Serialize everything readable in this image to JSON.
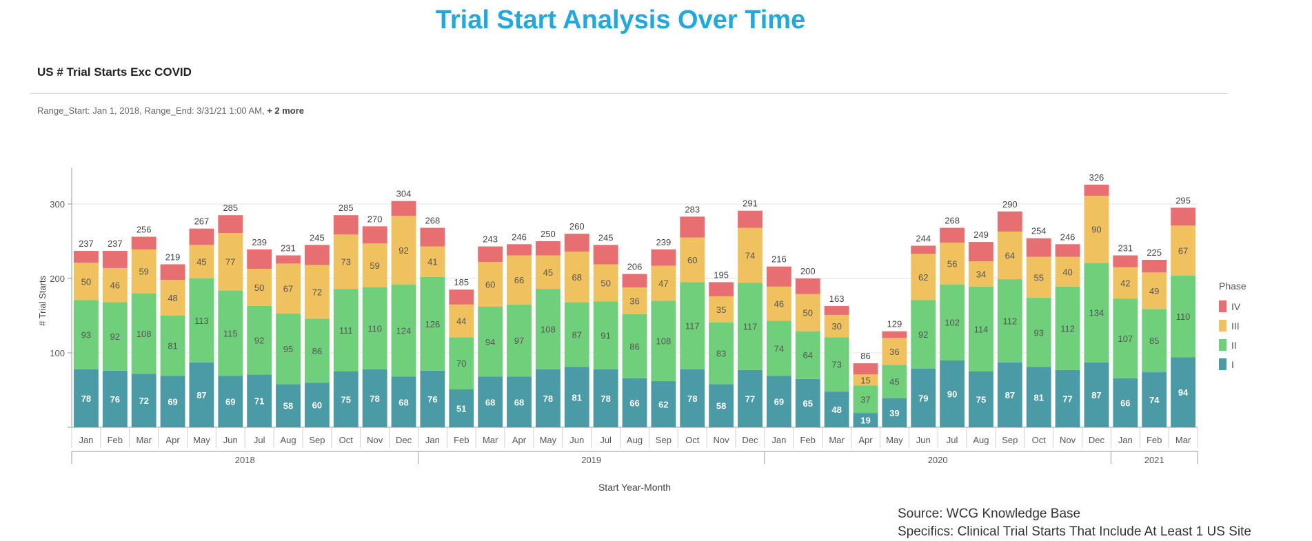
{
  "page": {
    "title": "Trial Start Analysis Over Time"
  },
  "header": {
    "chart_title": "US # Trial Starts Exc COVID",
    "filter_text": "Range_Start: Jan 1, 2018, Range_End: 3/31/21 1:00 AM,",
    "filter_more": "+ 2 more"
  },
  "footer": {
    "source": "Source: WCG Knowledge Base",
    "specifics": "Specifics: Clinical Trial Starts That Include At Least 1 US Site"
  },
  "chart_data": {
    "type": "bar",
    "stacked": true,
    "xlabel": "Start Year-Month",
    "ylabel": "# Trial Starts",
    "ylim": [
      0,
      360
    ],
    "yticks": [
      100,
      200,
      300
    ],
    "grid": true,
    "legend": {
      "title": "Phase",
      "position": "right"
    },
    "categories": [
      "Jan",
      "Feb",
      "Mar",
      "Apr",
      "May",
      "Jun",
      "Jul",
      "Aug",
      "Sep",
      "Oct",
      "Nov",
      "Dec",
      "Jan",
      "Feb",
      "Mar",
      "Apr",
      "May",
      "Jun",
      "Jul",
      "Aug",
      "Sep",
      "Oct",
      "Nov",
      "Dec",
      "Jan",
      "Feb",
      "Mar",
      "Apr",
      "May",
      "Jun",
      "Jul",
      "Aug",
      "Sep",
      "Oct",
      "Nov",
      "Dec",
      "Jan",
      "Feb",
      "Mar"
    ],
    "year_groups": [
      {
        "label": "2018",
        "count": 12
      },
      {
        "label": "2019",
        "count": 12
      },
      {
        "label": "2020",
        "count": 12
      },
      {
        "label": "2021",
        "count": 3
      }
    ],
    "series": [
      {
        "name": "I",
        "color": "#4b9ba6",
        "values": [
          78,
          76,
          72,
          69,
          87,
          69,
          71,
          58,
          60,
          75,
          78,
          68,
          76,
          51,
          68,
          68,
          78,
          81,
          78,
          66,
          62,
          78,
          58,
          77,
          69,
          65,
          48,
          19,
          39,
          79,
          90,
          75,
          87,
          81,
          77,
          87,
          66,
          74,
          94
        ]
      },
      {
        "name": "II",
        "color": "#6fcf7a",
        "values": [
          93,
          92,
          108,
          81,
          113,
          115,
          92,
          95,
          86,
          111,
          110,
          124,
          126,
          70,
          94,
          97,
          108,
          87,
          91,
          86,
          108,
          117,
          83,
          117,
          74,
          64,
          73,
          37,
          45,
          92,
          102,
          114,
          112,
          93,
          112,
          134,
          107,
          85,
          110
        ]
      },
      {
        "name": "III",
        "color": "#f0c15f",
        "values": [
          50,
          46,
          59,
          48,
          45,
          77,
          50,
          67,
          72,
          73,
          59,
          92,
          41,
          44,
          60,
          66,
          45,
          68,
          50,
          36,
          47,
          60,
          35,
          74,
          46,
          50,
          30,
          15,
          36,
          62,
          56,
          34,
          64,
          55,
          40,
          90,
          42,
          49,
          67
        ]
      },
      {
        "name": "IV",
        "color": "#e76f72",
        "values": [
          16,
          23,
          17,
          21,
          22,
          24,
          26,
          11,
          27,
          26,
          23,
          20,
          25,
          20,
          21,
          15,
          19,
          24,
          26,
          18,
          22,
          28,
          19,
          23,
          27,
          21,
          12,
          15,
          9,
          11,
          20,
          26,
          27,
          25,
          17,
          15,
          16,
          17,
          24
        ]
      }
    ],
    "totals": [
      237,
      237,
      256,
      219,
      267,
      285,
      239,
      231,
      245,
      285,
      270,
      304,
      268,
      185,
      243,
      246,
      250,
      260,
      245,
      206,
      239,
      283,
      195,
      291,
      216,
      200,
      163,
      86,
      129,
      244,
      268,
      249,
      290,
      254,
      246,
      326,
      231,
      225,
      295
    ]
  }
}
